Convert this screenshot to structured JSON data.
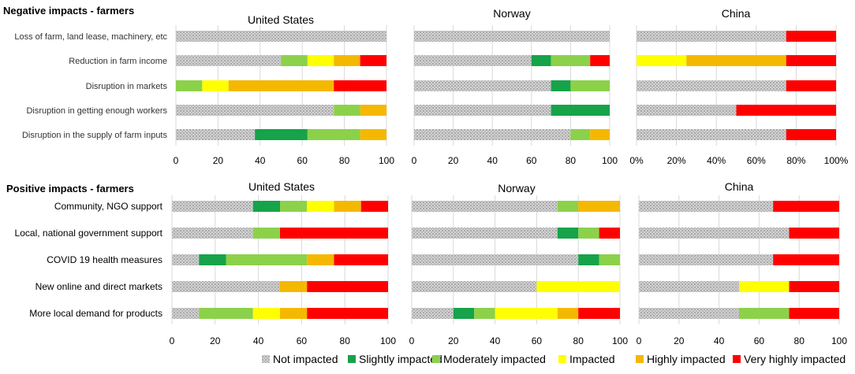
{
  "legend": {
    "items": [
      {
        "label": "Not impacted",
        "color": "#c8c8c8",
        "hatch": true
      },
      {
        "label": "Slightly impacted",
        "color": "#16a34a",
        "hatch": false
      },
      {
        "label": "Moderately impacted",
        "color": "#8cd14a",
        "hatch": false
      },
      {
        "label": "Impacted",
        "color": "#ffff00",
        "hatch": false
      },
      {
        "label": "Highly impacted",
        "color": "#f5b800",
        "hatch": false
      },
      {
        "label": "Very highly impacted",
        "color": "#ff0000",
        "hatch": false
      }
    ]
  },
  "chart_data": [
    {
      "type": "bar",
      "orientation": "horizontal-stacked",
      "section_title": "Negative impacts - farmers",
      "title": "United States",
      "categories": [
        "Loss of farm, land lease, machinery, etc",
        "Reduction in farm income",
        "Disruption in markets",
        "Disruption in getting enough workers",
        "Disruption in the supply of farm inputs"
      ],
      "xlim": [
        0,
        100
      ],
      "xticks": [
        "0",
        "20",
        "40",
        "60",
        "80",
        "100"
      ],
      "series": [
        {
          "name": "Not impacted",
          "values": [
            100,
            50,
            0,
            75,
            37.5
          ]
        },
        {
          "name": "Slightly impacted",
          "values": [
            0,
            0,
            0,
            0,
            25
          ]
        },
        {
          "name": "Moderately impacted",
          "values": [
            0,
            12.5,
            12.5,
            12.5,
            25
          ]
        },
        {
          "name": "Impacted",
          "values": [
            0,
            12.5,
            12.5,
            0,
            0
          ]
        },
        {
          "name": "Highly impacted",
          "values": [
            0,
            12.5,
            50,
            12.5,
            12.5
          ]
        },
        {
          "name": "Very highly impacted",
          "values": [
            0,
            12.5,
            25,
            0,
            0
          ]
        }
      ]
    },
    {
      "type": "bar",
      "orientation": "horizontal-stacked",
      "title": "Norway",
      "categories": [
        "Loss of farm, land lease, machinery, etc",
        "Reduction in farm income",
        "Disruption in markets",
        "Disruption in getting enough workers",
        "Disruption in the supply of farm inputs"
      ],
      "xlim": [
        0,
        100
      ],
      "xticks": [
        "0",
        "20",
        "40",
        "60",
        "80",
        "100"
      ],
      "series": [
        {
          "name": "Not impacted",
          "values": [
            100,
            60,
            70,
            70,
            80
          ]
        },
        {
          "name": "Slightly impacted",
          "values": [
            0,
            10,
            10,
            30,
            0
          ]
        },
        {
          "name": "Moderately impacted",
          "values": [
            0,
            20,
            20,
            0,
            10
          ]
        },
        {
          "name": "Impacted",
          "values": [
            0,
            0,
            0,
            0,
            0
          ]
        },
        {
          "name": "Highly impacted",
          "values": [
            0,
            0,
            0,
            0,
            10
          ]
        },
        {
          "name": "Very highly impacted",
          "values": [
            0,
            10,
            0,
            0,
            0
          ]
        }
      ]
    },
    {
      "type": "bar",
      "orientation": "horizontal-stacked",
      "title": "China",
      "categories": [
        "Loss of farm, land lease, machinery, etc",
        "Reduction in farm income",
        "Disruption in markets",
        "Disruption in getting enough workers",
        "Disruption in the supply of farm inputs"
      ],
      "xlim": [
        0,
        100
      ],
      "xticks": [
        "0%",
        "20%",
        "40%",
        "60%",
        "80%",
        "100%"
      ],
      "series": [
        {
          "name": "Not impacted",
          "values": [
            75,
            0,
            75,
            50,
            75
          ]
        },
        {
          "name": "Slightly impacted",
          "values": [
            0,
            0,
            0,
            0,
            0
          ]
        },
        {
          "name": "Moderately impacted",
          "values": [
            0,
            0,
            0,
            0,
            0
          ]
        },
        {
          "name": "Impacted",
          "values": [
            0,
            25,
            0,
            0,
            0
          ]
        },
        {
          "name": "Highly impacted",
          "values": [
            0,
            50,
            0,
            0,
            0
          ]
        },
        {
          "name": "Very highly impacted",
          "values": [
            25,
            25,
            25,
            50,
            25
          ]
        }
      ]
    },
    {
      "type": "bar",
      "orientation": "horizontal-stacked",
      "section_title": "Positive impacts - farmers",
      "title": "United States",
      "categories": [
        "Community, NGO support",
        "Local, national government support",
        "COVID 19 health measures",
        "New online and direct markets",
        "More local demand for products"
      ],
      "xlim": [
        0,
        100
      ],
      "xticks": [
        "0",
        "20",
        "40",
        "60",
        "80",
        "100"
      ],
      "series": [
        {
          "name": "Not impacted",
          "values": [
            37.5,
            37.5,
            12.5,
            50,
            12.5
          ]
        },
        {
          "name": "Slightly impacted",
          "values": [
            12.5,
            0,
            12.5,
            0,
            0
          ]
        },
        {
          "name": "Moderately impacted",
          "values": [
            12.5,
            12.5,
            37.5,
            0,
            25
          ]
        },
        {
          "name": "Impacted",
          "values": [
            12.5,
            0,
            0,
            0,
            12.5
          ]
        },
        {
          "name": "Highly impacted",
          "values": [
            12.5,
            0,
            12.5,
            12.5,
            12.5
          ]
        },
        {
          "name": "Very highly impacted",
          "values": [
            12.5,
            50,
            25,
            37.5,
            37.5
          ]
        }
      ]
    },
    {
      "type": "bar",
      "orientation": "horizontal-stacked",
      "title": "Norway",
      "categories": [
        "Community, NGO support",
        "Local, national government support",
        "COVID 19 health measures",
        "New online and direct markets",
        "More local demand for products"
      ],
      "xlim": [
        0,
        100
      ],
      "xticks": [
        "0",
        "20",
        "40",
        "60",
        "80",
        "100"
      ],
      "series": [
        {
          "name": "Not impacted",
          "values": [
            70,
            70,
            80,
            60,
            20
          ]
        },
        {
          "name": "Slightly impacted",
          "values": [
            0,
            10,
            10,
            0,
            10
          ]
        },
        {
          "name": "Moderately impacted",
          "values": [
            10,
            10,
            10,
            0,
            10
          ]
        },
        {
          "name": "Impacted",
          "values": [
            0,
            0,
            0,
            40,
            30
          ]
        },
        {
          "name": "Highly impacted",
          "values": [
            20,
            0,
            0,
            0,
            10
          ]
        },
        {
          "name": "Very highly impacted",
          "values": [
            0,
            10,
            0,
            0,
            20
          ]
        }
      ]
    },
    {
      "type": "bar",
      "orientation": "horizontal-stacked",
      "title": "China",
      "categories": [
        "Community, NGO support",
        "Local, national government support",
        "COVID 19 health measures",
        "New online and direct markets",
        "More local demand for products"
      ],
      "xlim": [
        0,
        100
      ],
      "xticks": [
        "0",
        "20",
        "40",
        "60",
        "80",
        "100"
      ],
      "series": [
        {
          "name": "Not impacted",
          "values": [
            67,
            75,
            67,
            50,
            50
          ]
        },
        {
          "name": "Slightly impacted",
          "values": [
            0,
            0,
            0,
            0,
            0
          ]
        },
        {
          "name": "Moderately impacted",
          "values": [
            0,
            0,
            0,
            0,
            25
          ]
        },
        {
          "name": "Impacted",
          "values": [
            0,
            0,
            0,
            25,
            0
          ]
        },
        {
          "name": "Highly impacted",
          "values": [
            0,
            0,
            0,
            0,
            0
          ]
        },
        {
          "name": "Very highly impacted",
          "values": [
            33,
            25,
            33,
            25,
            25
          ]
        }
      ]
    }
  ]
}
